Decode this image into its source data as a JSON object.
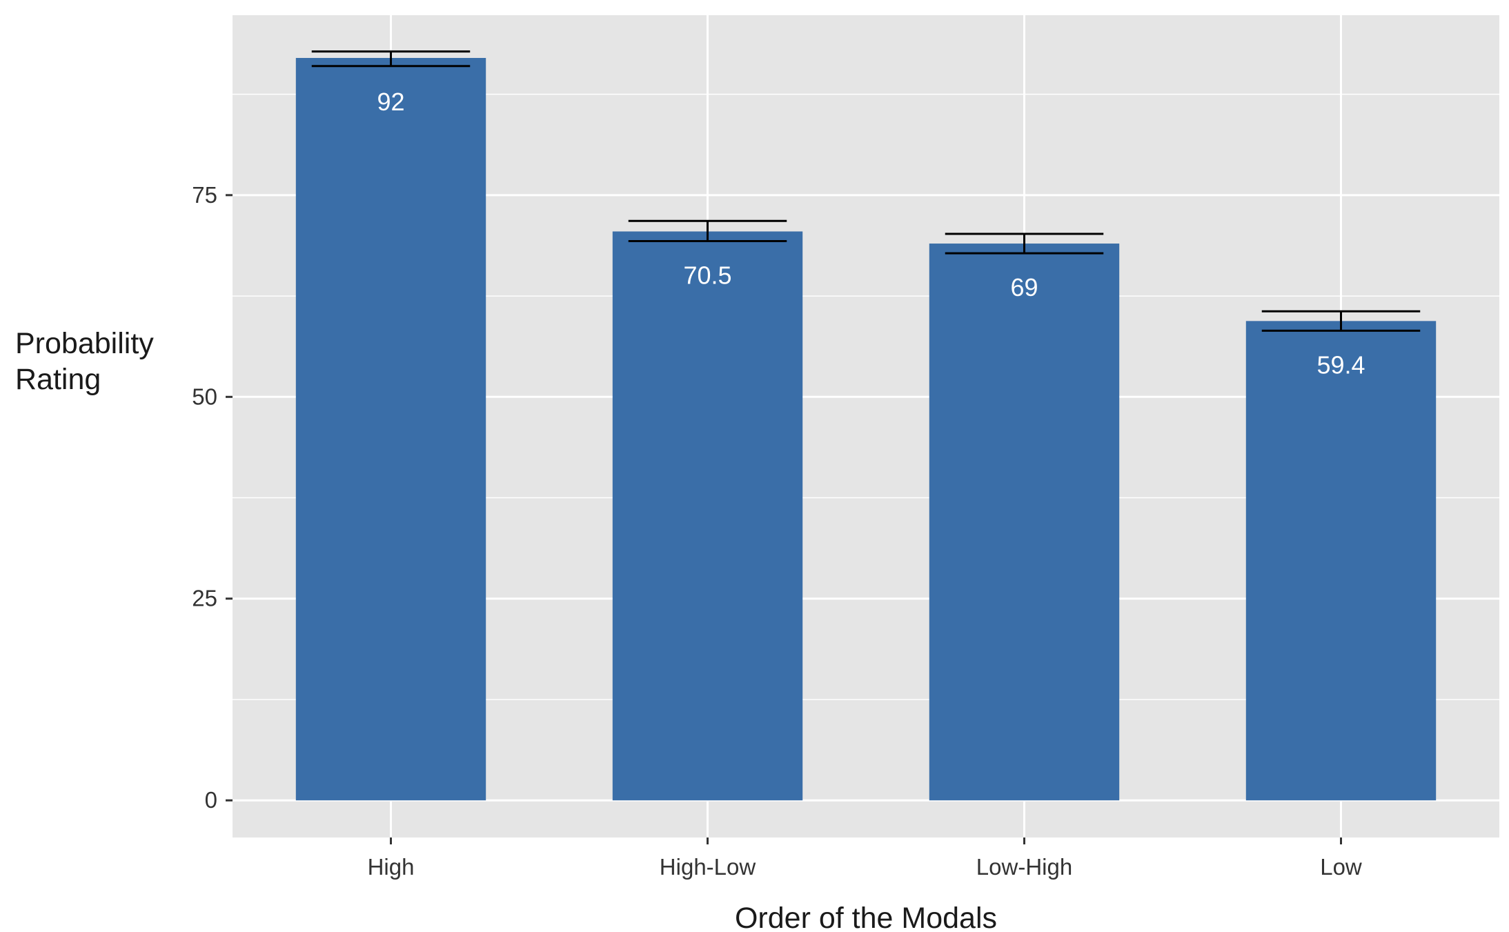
{
  "chart_data": {
    "type": "bar",
    "categories": [
      "High",
      "High-Low",
      "Low-High",
      "Low"
    ],
    "values": [
      92,
      70.5,
      69,
      59.4
    ],
    "value_labels": [
      "92",
      "70.5",
      "69",
      "59.4"
    ],
    "error_bars": [
      {
        "lower": 91.0,
        "upper": 92.8
      },
      {
        "lower": 69.3,
        "upper": 71.8
      },
      {
        "lower": 67.8,
        "upper": 70.2
      },
      {
        "lower": 58.2,
        "upper": 60.6
      }
    ],
    "xlabel": "Order of the Modals",
    "ylabel_lines": [
      "Probability",
      "Rating"
    ],
    "ylim": [
      -4.6,
      97.3
    ],
    "yticks": [
      0,
      25,
      50,
      75
    ],
    "ytick_labels": [
      "0",
      "25",
      "50",
      "75"
    ],
    "grid": true,
    "colors": {
      "bar": "#3A6EA8",
      "panel": "#E5E5E5",
      "grid": "#FFFFFF",
      "error_bar": "#000000"
    }
  }
}
